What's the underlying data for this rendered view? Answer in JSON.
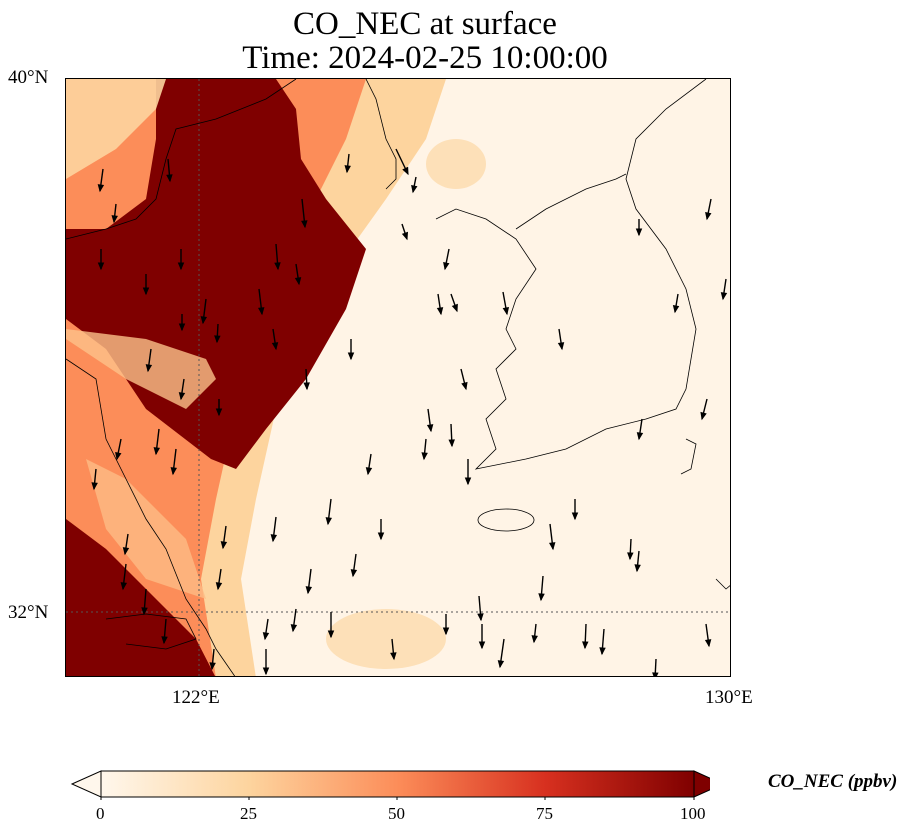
{
  "title": {
    "line1": "CO_NEC at surface",
    "line2": "Time: 2024-02-25 10:00:00"
  },
  "map": {
    "lat_labels": [
      "40°N",
      "32°N"
    ],
    "lon_labels": [
      "122°E",
      "130°E"
    ],
    "extent": {
      "lon_min": 120.0,
      "lon_max": 130.0,
      "lat_min": 31.0,
      "lat_max": 40.0
    },
    "gridlines": {
      "lon": 122,
      "lat": 32,
      "style": "dotted"
    },
    "field": "CO_NEC",
    "wind_vectors": "shown as black arrows, mostly pointing south"
  },
  "colorbar": {
    "label": "CO_NEC (ppbv)",
    "ticks": [
      "0",
      "25",
      "50",
      "75",
      "100"
    ],
    "range": [
      0,
      100
    ],
    "colormap": "OrRd",
    "colors": [
      "#fff7ec",
      "#fdd49e",
      "#fc8d59",
      "#d7301f",
      "#7f0000"
    ],
    "extend": "both"
  }
}
